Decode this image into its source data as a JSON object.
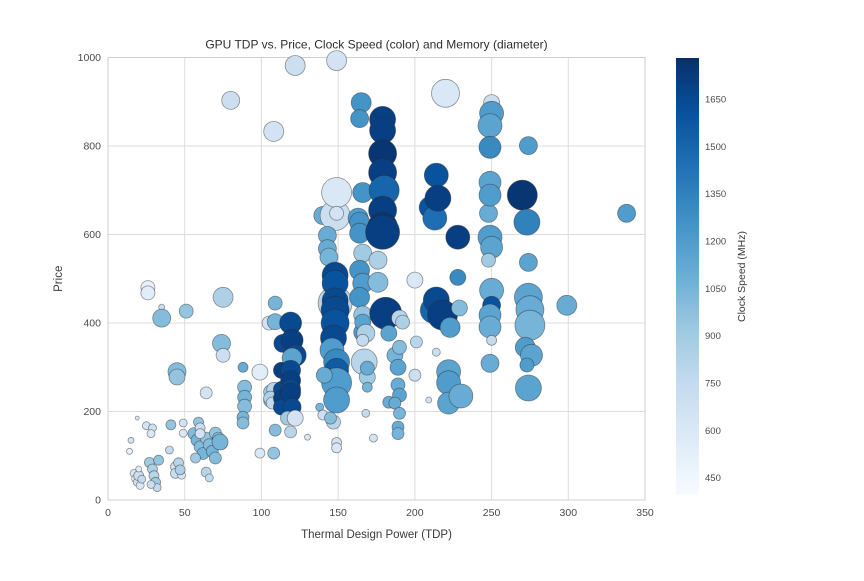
{
  "chart_data": {
    "type": "scatter",
    "title": "GPU TDP vs. Price, Clock Speed (color) and Memory (diameter)",
    "xlabel": "Thermal Design Power (TDP)",
    "ylabel": "Price",
    "xlim": [
      0,
      350
    ],
    "ylim": [
      0,
      1000
    ],
    "xticks": [
      0,
      50,
      100,
      150,
      200,
      250,
      300,
      350
    ],
    "yticks": [
      0,
      200,
      400,
      600,
      800,
      1000
    ],
    "grid": true,
    "legend_position": "none",
    "size_encoding": "Memory (diameter)",
    "colorbar": {
      "label": "Clock Speed (MHz)",
      "ticks": [
        450,
        600,
        750,
        900,
        1050,
        1200,
        1350,
        1500,
        1650
      ],
      "domain": [
        395,
        1780
      ],
      "colormap": "Blues",
      "colormap_hex": [
        "#f7fbff",
        "#deebf7",
        "#c6dbef",
        "#9ecae1",
        "#6baed6",
        "#4292c6",
        "#2171b5",
        "#08519c",
        "#08306b"
      ]
    },
    "points_format": [
      "tdp",
      "price",
      "clock_mhz",
      "radius_px"
    ],
    "points": [
      [
        17,
        60,
        600,
        4
      ],
      [
        18,
        48,
        550,
        4
      ],
      [
        19,
        40,
        650,
        4
      ],
      [
        20,
        55,
        700,
        5
      ],
      [
        21,
        33,
        600,
        4
      ],
      [
        22,
        47,
        750,
        4
      ],
      [
        20,
        70,
        550,
        3
      ],
      [
        15,
        135,
        650,
        3
      ],
      [
        14,
        110,
        500,
        3
      ],
      [
        19,
        185,
        600,
        2
      ],
      [
        25,
        168,
        650,
        4
      ],
      [
        29,
        163,
        700,
        4
      ],
      [
        28,
        150,
        600,
        4
      ],
      [
        27,
        85,
        900,
        5
      ],
      [
        29,
        70,
        850,
        5
      ],
      [
        30,
        55,
        800,
        5
      ],
      [
        31,
        40,
        900,
        5
      ],
      [
        32,
        28,
        750,
        4
      ],
      [
        28,
        35,
        700,
        4
      ],
      [
        33,
        90,
        950,
        5
      ],
      [
        35,
        436,
        700,
        3
      ],
      [
        35,
        411,
        1000,
        9
      ],
      [
        26,
        480,
        500,
        7
      ],
      [
        26,
        468,
        550,
        7
      ],
      [
        40,
        113,
        750,
        4
      ],
      [
        41,
        170,
        950,
        5
      ],
      [
        44,
        75,
        650,
        5
      ],
      [
        44,
        60,
        700,
        5
      ],
      [
        48,
        56,
        600,
        4
      ],
      [
        46,
        84,
        800,
        5
      ],
      [
        47,
        68,
        850,
        5
      ],
      [
        45,
        290,
        1000,
        9
      ],
      [
        45,
        278,
        950,
        8
      ],
      [
        49,
        174,
        650,
        4
      ],
      [
        49,
        151,
        600,
        4
      ],
      [
        51,
        427,
        950,
        7
      ],
      [
        56,
        150,
        1000,
        6
      ],
      [
        58,
        135,
        1050,
        6
      ],
      [
        60,
        120,
        1000,
        6
      ],
      [
        62,
        105,
        1050,
        6
      ],
      [
        64,
        140,
        950,
        6
      ],
      [
        66,
        125,
        1000,
        6
      ],
      [
        68,
        110,
        1050,
        6
      ],
      [
        70,
        95,
        1000,
        6
      ],
      [
        57,
        95,
        900,
        5
      ],
      [
        64,
        63,
        800,
        5
      ],
      [
        66,
        50,
        750,
        4
      ],
      [
        59,
        176,
        950,
        5
      ],
      [
        60,
        163,
        700,
        5
      ],
      [
        60,
        150,
        650,
        5
      ],
      [
        64,
        242,
        650,
        6
      ],
      [
        70,
        151,
        950,
        6
      ],
      [
        72,
        140,
        1000,
        6
      ],
      [
        74,
        128,
        950,
        6
      ],
      [
        73,
        131,
        1050,
        8
      ],
      [
        75,
        458,
        850,
        10
      ],
      [
        74,
        354,
        1000,
        9
      ],
      [
        75,
        327,
        700,
        7
      ],
      [
        80,
        903,
        700,
        9
      ],
      [
        88,
        300,
        1100,
        5
      ],
      [
        89,
        255,
        1000,
        7
      ],
      [
        89,
        232,
        1050,
        7
      ],
      [
        89,
        212,
        1000,
        7
      ],
      [
        88,
        187,
        1050,
        6
      ],
      [
        88,
        174,
        1000,
        6
      ],
      [
        99,
        289,
        550,
        8
      ],
      [
        106,
        244,
        900,
        7
      ],
      [
        106,
        225,
        950,
        7
      ],
      [
        108,
        833,
        650,
        10
      ],
      [
        109,
        445,
        1050,
        7
      ],
      [
        105,
        400,
        650,
        7
      ],
      [
        109,
        403,
        1050,
        8
      ],
      [
        114,
        354,
        1650,
        9
      ],
      [
        108,
        250,
        800,
        7
      ],
      [
        106,
        230,
        850,
        7
      ],
      [
        107,
        219,
        750,
        6
      ],
      [
        109,
        158,
        1000,
        6
      ],
      [
        108,
        106,
        950,
        6
      ],
      [
        99,
        106,
        600,
        5
      ],
      [
        113,
        293,
        1700,
        8
      ],
      [
        113,
        250,
        1650,
        8
      ],
      [
        113,
        230,
        1700,
        8
      ],
      [
        113,
        210,
        1650,
        8
      ],
      [
        119,
        400,
        1650,
        11
      ],
      [
        120,
        361,
        1700,
        11
      ],
      [
        122,
        327,
        1650,
        11
      ],
      [
        120,
        321,
        1150,
        10
      ],
      [
        119,
        293,
        1650,
        10
      ],
      [
        119,
        270,
        1700,
        10
      ],
      [
        119,
        250,
        1650,
        10
      ],
      [
        119,
        242,
        1700,
        10
      ],
      [
        120,
        210,
        1650,
        9
      ],
      [
        117,
        185,
        900,
        7
      ],
      [
        122,
        185,
        650,
        8
      ],
      [
        119,
        154,
        800,
        6
      ],
      [
        130,
        142,
        600,
        3
      ],
      [
        122,
        982,
        700,
        10
      ],
      [
        149,
        993,
        650,
        10
      ],
      [
        140,
        643,
        1100,
        9
      ],
      [
        148,
        643,
        700,
        15
      ],
      [
        143,
        598,
        1100,
        9
      ],
      [
        143,
        568,
        1100,
        9
      ],
      [
        144,
        549,
        1050,
        9
      ],
      [
        148,
        445,
        800,
        17
      ],
      [
        148,
        508,
        1650,
        13
      ],
      [
        148,
        490,
        1600,
        13
      ],
      [
        148,
        450,
        1650,
        13
      ],
      [
        148,
        429,
        1650,
        14
      ],
      [
        148,
        400,
        1600,
        14
      ],
      [
        147,
        366,
        1650,
        13
      ],
      [
        146,
        339,
        1200,
        12
      ],
      [
        149,
        312,
        1300,
        13
      ],
      [
        149,
        293,
        1550,
        12
      ],
      [
        149,
        265,
        1200,
        15
      ],
      [
        149,
        226,
        1200,
        13
      ],
      [
        141,
        282,
        1100,
        8
      ],
      [
        138,
        210,
        1050,
        4
      ],
      [
        147,
        176,
        800,
        7
      ],
      [
        149,
        130,
        650,
        5
      ],
      [
        149,
        118,
        600,
        5
      ],
      [
        140,
        192,
        700,
        5
      ],
      [
        145,
        185,
        1000,
        6
      ],
      [
        149,
        695,
        600,
        15
      ],
      [
        149,
        648,
        650,
        7
      ],
      [
        163,
        637,
        1200,
        10
      ],
      [
        164,
        628,
        1250,
        10
      ],
      [
        165,
        898,
        1250,
        10
      ],
      [
        164,
        862,
        1250,
        9
      ],
      [
        164,
        603,
        1250,
        10
      ],
      [
        166,
        558,
        900,
        9
      ],
      [
        164,
        519,
        1250,
        10
      ],
      [
        166,
        490,
        1200,
        10
      ],
      [
        164,
        458,
        1250,
        10
      ],
      [
        166,
        418,
        950,
        9
      ],
      [
        166,
        379,
        1200,
        9
      ],
      [
        166,
        695,
        1250,
        10
      ],
      [
        166,
        402,
        1150,
        8
      ],
      [
        168,
        377,
        850,
        9
      ],
      [
        167,
        312,
        800,
        13
      ],
      [
        169,
        278,
        900,
        8
      ],
      [
        169,
        298,
        1100,
        7
      ],
      [
        169,
        255,
        1050,
        5
      ],
      [
        168,
        196,
        750,
        4
      ],
      [
        173,
        140,
        650,
        4
      ],
      [
        166,
        361,
        750,
        6
      ],
      [
        179,
        860,
        1700,
        13
      ],
      [
        179,
        835,
        1700,
        13
      ],
      [
        179,
        783,
        1750,
        14
      ],
      [
        179,
        740,
        1700,
        14
      ],
      [
        180,
        700,
        1500,
        15
      ],
      [
        179,
        655,
        1700,
        14
      ],
      [
        179,
        616,
        1750,
        15
      ],
      [
        179,
        605,
        1700,
        17
      ],
      [
        176,
        542,
        850,
        9
      ],
      [
        176,
        492,
        1000,
        10
      ],
      [
        181,
        422,
        1700,
        16
      ],
      [
        190,
        411,
        800,
        8
      ],
      [
        183,
        377,
        1150,
        8
      ],
      [
        187,
        327,
        1050,
        8
      ],
      [
        183,
        221,
        1100,
        6
      ],
      [
        189,
        300,
        1150,
        8
      ],
      [
        189,
        260,
        1100,
        7
      ],
      [
        190,
        237,
        1150,
        7
      ],
      [
        187,
        219,
        1100,
        6
      ],
      [
        190,
        196,
        1050,
        6
      ],
      [
        189,
        165,
        1100,
        6
      ],
      [
        189,
        150,
        1050,
        6
      ],
      [
        190,
        345,
        1000,
        7
      ],
      [
        192,
        402,
        850,
        7
      ],
      [
        200,
        497,
        600,
        8
      ],
      [
        200,
        282,
        700,
        6
      ],
      [
        201,
        357,
        800,
        6
      ],
      [
        209,
        226,
        650,
        3
      ],
      [
        214,
        334,
        700,
        4
      ],
      [
        210,
        661,
        1600,
        11
      ],
      [
        213,
        637,
        1450,
        12
      ],
      [
        214,
        734,
        1600,
        12
      ],
      [
        215,
        682,
        1700,
        13
      ],
      [
        220,
        919,
        600,
        14
      ],
      [
        228,
        594,
        1700,
        12
      ],
      [
        228,
        503,
        1300,
        8
      ],
      [
        212,
        429,
        1500,
        13
      ],
      [
        214,
        452,
        1650,
        13
      ],
      [
        218,
        418,
        1700,
        15
      ],
      [
        229,
        434,
        1000,
        8
      ],
      [
        223,
        390,
        1200,
        10
      ],
      [
        222,
        290,
        1150,
        12
      ],
      [
        222,
        265,
        1200,
        12
      ],
      [
        222,
        219,
        1150,
        11
      ],
      [
        230,
        235,
        1100,
        12
      ],
      [
        250,
        898,
        700,
        8
      ],
      [
        250,
        874,
        1200,
        12
      ],
      [
        249,
        846,
        1150,
        12
      ],
      [
        249,
        797,
        1300,
        11
      ],
      [
        248,
        648,
        1100,
        9
      ],
      [
        249,
        718,
        1150,
        11
      ],
      [
        249,
        689,
        1200,
        11
      ],
      [
        249,
        594,
        1200,
        12
      ],
      [
        250,
        571,
        1150,
        11
      ],
      [
        248,
        542,
        900,
        7
      ],
      [
        250,
        474,
        1100,
        12
      ],
      [
        250,
        440,
        1600,
        9
      ],
      [
        249,
        418,
        1150,
        11
      ],
      [
        249,
        391,
        1100,
        11
      ],
      [
        250,
        361,
        750,
        5
      ],
      [
        249,
        309,
        1100,
        9
      ],
      [
        270,
        689,
        1750,
        15
      ],
      [
        273,
        628,
        1350,
        13
      ],
      [
        274,
        801,
        1200,
        9
      ],
      [
        274,
        537,
        1150,
        9
      ],
      [
        274,
        458,
        1150,
        14
      ],
      [
        275,
        430,
        1100,
        14
      ],
      [
        275,
        395,
        1050,
        15
      ],
      [
        272,
        345,
        1200,
        10
      ],
      [
        276,
        327,
        1150,
        11
      ],
      [
        273,
        305,
        1200,
        7
      ],
      [
        274,
        253,
        1150,
        13
      ],
      [
        299,
        440,
        1100,
        10
      ],
      [
        338,
        648,
        1200,
        9
      ]
    ]
  }
}
